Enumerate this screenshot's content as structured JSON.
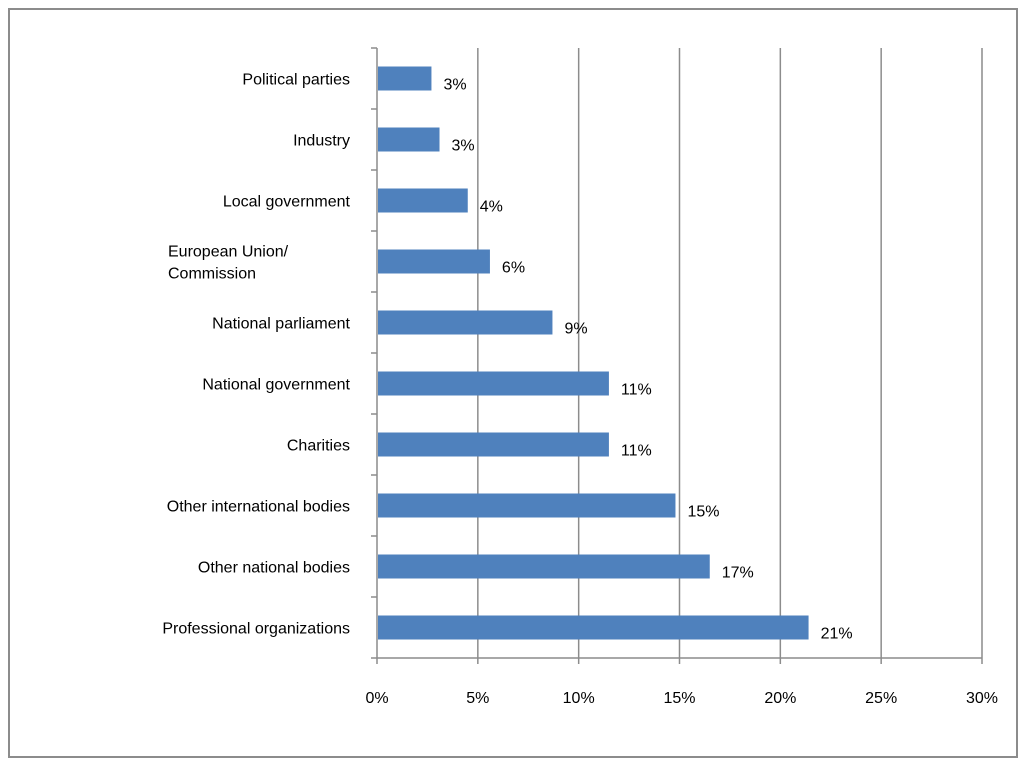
{
  "chart_data": {
    "type": "bar",
    "orientation": "horizontal",
    "categories": [
      "Political parties",
      "Industry",
      "Local government",
      "European Union/ Commission",
      "National parliament",
      "National government",
      "Charities",
      "Other international bodies",
      "Other national bodies",
      "Professional organizations"
    ],
    "category_lines": [
      [
        "Political parties"
      ],
      [
        "Industry"
      ],
      [
        "Local government"
      ],
      [
        "European Union/",
        "Commission"
      ],
      [
        "National parliament"
      ],
      [
        "National government"
      ],
      [
        "Charities"
      ],
      [
        "Other international bodies"
      ],
      [
        "Other national bodies"
      ],
      [
        "Professional organizations"
      ]
    ],
    "values": [
      2.7,
      3.1,
      4.5,
      5.6,
      8.7,
      11.5,
      11.5,
      14.8,
      16.5,
      21.4
    ],
    "data_labels": [
      "3%",
      "3%",
      "4%",
      "6%",
      "9%",
      "11%",
      "11%",
      "15%",
      "17%",
      "21%"
    ],
    "xlim": [
      0,
      30
    ],
    "xticks": [
      0,
      5,
      10,
      15,
      20,
      25,
      30
    ],
    "xtick_labels": [
      "0%",
      "5%",
      "10%",
      "15%",
      "20%",
      "25%",
      "30%"
    ],
    "grid": "vertical",
    "bar_color": "#4f81bd",
    "grid_color": "#8c8c8c",
    "title": "",
    "xlabel": "",
    "ylabel": ""
  }
}
